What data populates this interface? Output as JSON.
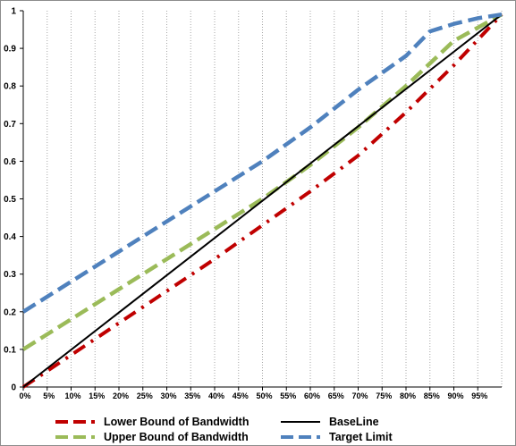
{
  "chart_data": {
    "type": "line",
    "title": "",
    "xlabel": "",
    "ylabel": "",
    "x": [
      "0%",
      "5%",
      "10%",
      "15%",
      "20%",
      "25%",
      "30%",
      "35%",
      "40%",
      "45%",
      "50%",
      "55%",
      "60%",
      "65%",
      "70%",
      "75%",
      "80%",
      "85%",
      "90%",
      "95%"
    ],
    "x_values": [
      0,
      0.05,
      0.1,
      0.15,
      0.2,
      0.25,
      0.3,
      0.35,
      0.4,
      0.45,
      0.5,
      0.55,
      0.6,
      0.65,
      0.7,
      0.75,
      0.8,
      0.85,
      0.9,
      0.95
    ],
    "xlim": [
      0,
      1
    ],
    "ylim": [
      0,
      1
    ],
    "yticks": [
      "0",
      "0.1",
      "0.2",
      "0.3",
      "0.4",
      "0.5",
      "0.6",
      "0.7",
      "0.8",
      "0.9",
      "1"
    ],
    "grid": "vertical dotted",
    "legend_position": "bottom",
    "series": [
      {
        "name": "Lower Bound of Bandwidth",
        "color": "#c00000",
        "style": "dash-dot",
        "x": [
          0,
          0.1,
          0.2,
          0.3,
          0.4,
          0.5,
          0.6,
          0.7,
          0.8,
          0.9,
          1.0
        ],
        "y": [
          0,
          0.085,
          0.17,
          0.255,
          0.34,
          0.43,
          0.52,
          0.615,
          0.73,
          0.855,
          0.99
        ]
      },
      {
        "name": "Upper Bound of Bandwidth",
        "color": "#9bbb59",
        "style": "dash",
        "x": [
          0,
          0.1,
          0.2,
          0.3,
          0.4,
          0.5,
          0.6,
          0.7,
          0.8,
          0.9,
          1.0
        ],
        "y": [
          0.1,
          0.18,
          0.26,
          0.34,
          0.42,
          0.5,
          0.59,
          0.69,
          0.8,
          0.92,
          0.99
        ]
      },
      {
        "name": "BaseLine",
        "color": "#000000",
        "style": "solid",
        "x": [
          0,
          1.0
        ],
        "y": [
          0,
          0.99
        ]
      },
      {
        "name": "Target Limit",
        "color": "#4f81bd",
        "style": "dash",
        "x": [
          0,
          0.1,
          0.2,
          0.3,
          0.4,
          0.5,
          0.6,
          0.7,
          0.8,
          0.85,
          0.9,
          0.95,
          1.0
        ],
        "y": [
          0.2,
          0.28,
          0.36,
          0.44,
          0.52,
          0.6,
          0.69,
          0.79,
          0.88,
          0.945,
          0.965,
          0.98,
          0.99
        ]
      }
    ]
  }
}
